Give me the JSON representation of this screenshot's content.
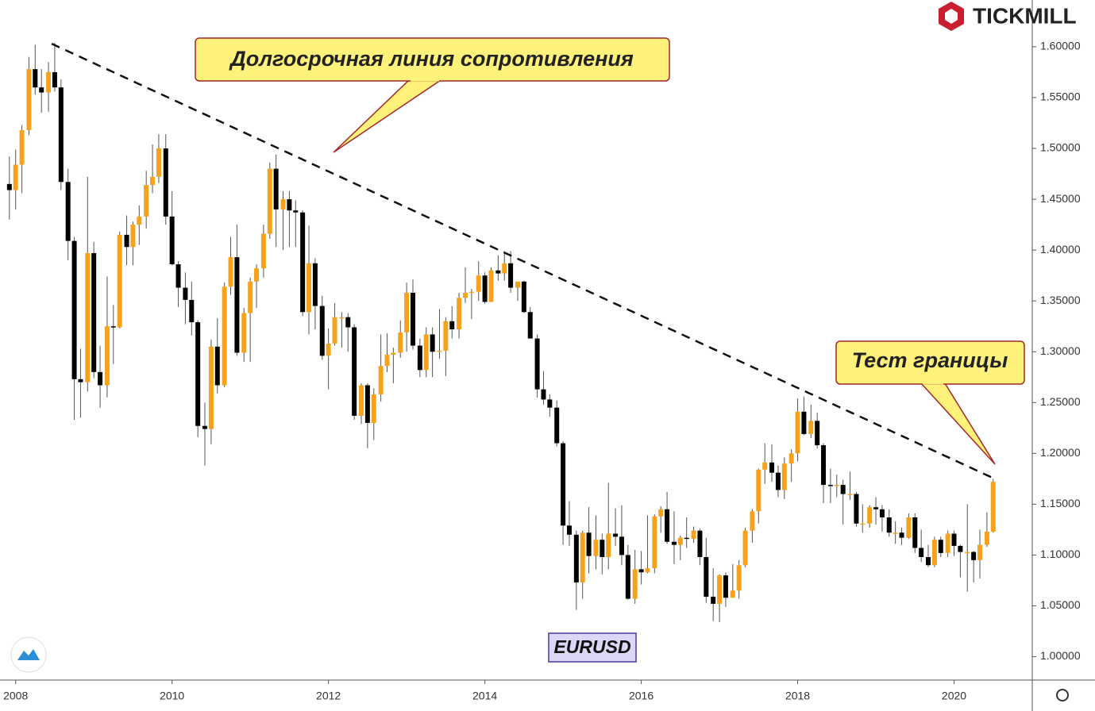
{
  "chart_data": {
    "type": "candlestick",
    "x": [
      2007.92,
      2008,
      2008.08,
      2008.17,
      2008.25,
      2008.33,
      2008.42,
      2008.5,
      2008.58,
      2008.67,
      2008.75,
      2008.83,
      2008.92,
      2009,
      2009.08,
      2009.17,
      2009.25,
      2009.33,
      2009.42,
      2009.5,
      2009.58,
      2009.67,
      2009.75,
      2009.83,
      2009.92,
      2010,
      2010.08,
      2010.17,
      2010.25,
      2010.33,
      2010.42,
      2010.5,
      2010.58,
      2010.67,
      2010.75,
      2010.83,
      2010.92,
      2011,
      2011.08,
      2011.17,
      2011.25,
      2011.33,
      2011.42,
      2011.5,
      2011.58,
      2011.67,
      2011.75,
      2011.83,
      2011.92,
      2012,
      2012.08,
      2012.17,
      2012.25,
      2012.33,
      2012.42,
      2012.5,
      2012.58,
      2012.67,
      2012.75,
      2012.83,
      2012.92,
      2013,
      2013.08,
      2013.17,
      2013.25,
      2013.33,
      2013.42,
      2013.5,
      2013.58,
      2013.67,
      2013.75,
      2013.83,
      2013.92,
      2014,
      2014.08,
      2014.17,
      2014.25,
      2014.33,
      2014.42,
      2014.5,
      2014.58,
      2014.67,
      2014.75,
      2014.83,
      2014.92,
      2015,
      2015.08,
      2015.17,
      2015.25,
      2015.33,
      2015.42,
      2015.5,
      2015.58,
      2015.67,
      2015.75,
      2015.83,
      2015.92,
      2016,
      2016.08,
      2016.17,
      2016.25,
      2016.33,
      2016.42,
      2016.5,
      2016.58,
      2016.67,
      2016.75,
      2016.83,
      2016.92,
      2017,
      2017.08,
      2017.17,
      2017.25,
      2017.33,
      2017.42,
      2017.5,
      2017.58,
      2017.67,
      2017.75,
      2017.83,
      2017.92,
      2018,
      2018.08,
      2018.17,
      2018.25,
      2018.33,
      2018.42,
      2018.5,
      2018.58,
      2018.67,
      2018.75,
      2018.83,
      2018.92,
      2019,
      2019.08,
      2019.17,
      2019.25,
      2019.33,
      2019.42,
      2019.5,
      2019.58,
      2019.67,
      2019.75,
      2019.83,
      2019.92,
      2020,
      2020.08,
      2020.17,
      2020.25,
      2020.33,
      2020.42,
      2020.5
    ],
    "open": [
      1.465,
      1.459,
      1.484,
      1.518,
      1.578,
      1.56,
      1.555,
      1.575,
      1.56,
      1.467,
      1.409,
      1.273,
      1.27,
      1.397,
      1.28,
      1.267,
      1.325,
      1.324,
      1.415,
      1.403,
      1.425,
      1.433,
      1.464,
      1.472,
      1.5,
      1.433,
      1.386,
      1.363,
      1.351,
      1.329,
      1.227,
      1.224,
      1.305,
      1.267,
      1.364,
      1.393,
      1.299,
      1.338,
      1.369,
      1.382,
      1.416,
      1.48,
      1.44,
      1.45,
      1.439,
      1.437,
      1.339,
      1.387,
      1.345,
      1.296,
      1.308,
      1.334,
      1.334,
      1.324,
      1.237,
      1.267,
      1.23,
      1.258,
      1.286,
      1.297,
      1.299,
      1.319,
      1.358,
      1.306,
      1.282,
      1.317,
      1.3,
      1.301,
      1.33,
      1.322,
      1.353,
      1.358,
      1.359,
      1.375,
      1.349,
      1.38,
      1.377,
      1.387,
      1.363,
      1.369,
      1.339,
      1.313,
      1.263,
      1.253,
      1.245,
      1.21,
      1.129,
      1.12,
      1.073,
      1.122,
      1.099,
      1.115,
      1.098,
      1.121,
      1.118,
      1.1,
      1.057,
      1.086,
      1.083,
      1.087,
      1.138,
      1.145,
      1.113,
      1.11,
      1.117,
      1.116,
      1.124,
      1.098,
      1.059,
      1.052,
      1.08,
      1.058,
      1.065,
      1.09,
      1.124,
      1.143,
      1.184,
      1.191,
      1.181,
      1.164,
      1.19,
      1.2,
      1.241,
      1.219,
      1.232,
      1.208,
      1.169,
      1.168,
      1.169,
      1.16,
      1.16,
      1.131,
      1.131,
      1.147,
      1.145,
      1.137,
      1.122,
      1.122,
      1.117,
      1.137,
      1.107,
      1.098,
      1.09,
      1.115,
      1.102,
      1.121,
      1.109,
      1.103,
      1.103,
      1.095,
      1.11,
      1.123
    ],
    "high": [
      1.492,
      1.499,
      1.523,
      1.59,
      1.602,
      1.578,
      1.585,
      1.604,
      1.568,
      1.48,
      1.413,
      1.303,
      1.472,
      1.408,
      1.306,
      1.374,
      1.346,
      1.418,
      1.434,
      1.428,
      1.444,
      1.478,
      1.504,
      1.514,
      1.514,
      1.458,
      1.389,
      1.378,
      1.369,
      1.331,
      1.25,
      1.312,
      1.333,
      1.368,
      1.413,
      1.425,
      1.343,
      1.373,
      1.386,
      1.425,
      1.486,
      1.494,
      1.458,
      1.458,
      1.449,
      1.439,
      1.424,
      1.392,
      1.355,
      1.323,
      1.348,
      1.339,
      1.338,
      1.327,
      1.269,
      1.269,
      1.264,
      1.317,
      1.318,
      1.304,
      1.331,
      1.368,
      1.371,
      1.313,
      1.324,
      1.324,
      1.342,
      1.334,
      1.345,
      1.358,
      1.383,
      1.362,
      1.389,
      1.378,
      1.383,
      1.395,
      1.399,
      1.399,
      1.369,
      1.37,
      1.344,
      1.317,
      1.281,
      1.258,
      1.252,
      1.212,
      1.153,
      1.124,
      1.124,
      1.147,
      1.139,
      1.121,
      1.171,
      1.146,
      1.149,
      1.11,
      1.105,
      1.104,
      1.139,
      1.14,
      1.148,
      1.162,
      1.143,
      1.119,
      1.137,
      1.128,
      1.126,
      1.117,
      1.087,
      1.081,
      1.083,
      1.091,
      1.095,
      1.127,
      1.145,
      1.185,
      1.21,
      1.209,
      1.188,
      1.196,
      1.204,
      1.254,
      1.256,
      1.248,
      1.24,
      1.21,
      1.185,
      1.179,
      1.174,
      1.182,
      1.162,
      1.15,
      1.149,
      1.157,
      1.149,
      1.145,
      1.133,
      1.127,
      1.141,
      1.141,
      1.125,
      1.11,
      1.118,
      1.118,
      1.124,
      1.124,
      1.11,
      1.15,
      1.104,
      1.125,
      1.142,
      1.175
    ],
    "low": [
      1.43,
      1.44,
      1.456,
      1.513,
      1.553,
      1.535,
      1.536,
      1.556,
      1.459,
      1.39,
      1.233,
      1.235,
      1.261,
      1.274,
      1.245,
      1.255,
      1.288,
      1.323,
      1.385,
      1.385,
      1.405,
      1.421,
      1.456,
      1.466,
      1.425,
      1.385,
      1.344,
      1.327,
      1.316,
      1.216,
      1.188,
      1.209,
      1.259,
      1.265,
      1.356,
      1.296,
      1.29,
      1.29,
      1.343,
      1.373,
      1.411,
      1.403,
      1.4,
      1.403,
      1.403,
      1.335,
      1.317,
      1.322,
      1.292,
      1.263,
      1.306,
      1.304,
      1.3,
      1.233,
      1.229,
      1.205,
      1.213,
      1.251,
      1.28,
      1.269,
      1.294,
      1.3,
      1.302,
      1.275,
      1.275,
      1.275,
      1.293,
      1.276,
      1.313,
      1.313,
      1.348,
      1.332,
      1.35,
      1.347,
      1.349,
      1.37,
      1.37,
      1.358,
      1.35,
      1.338,
      1.313,
      1.255,
      1.248,
      1.236,
      1.207,
      1.11,
      1.109,
      1.046,
      1.057,
      1.082,
      1.086,
      1.081,
      1.086,
      1.109,
      1.09,
      1.056,
      1.052,
      1.071,
      1.082,
      1.082,
      1.122,
      1.111,
      1.091,
      1.095,
      1.107,
      1.112,
      1.09,
      1.053,
      1.035,
      1.034,
      1.049,
      1.058,
      1.057,
      1.088,
      1.112,
      1.131,
      1.17,
      1.172,
      1.157,
      1.155,
      1.172,
      1.192,
      1.218,
      1.215,
      1.205,
      1.151,
      1.151,
      1.157,
      1.13,
      1.154,
      1.128,
      1.122,
      1.127,
      1.13,
      1.123,
      1.118,
      1.111,
      1.11,
      1.116,
      1.102,
      1.093,
      1.088,
      1.088,
      1.098,
      1.098,
      1.099,
      1.078,
      1.064,
      1.073,
      1.077,
      1.108,
      1.122
    ],
    "close": [
      1.459,
      1.484,
      1.518,
      1.578,
      1.56,
      1.555,
      1.575,
      1.56,
      1.467,
      1.409,
      1.273,
      1.27,
      1.397,
      1.28,
      1.267,
      1.325,
      1.324,
      1.415,
      1.403,
      1.425,
      1.433,
      1.464,
      1.472,
      1.5,
      1.433,
      1.386,
      1.363,
      1.351,
      1.329,
      1.227,
      1.224,
      1.305,
      1.267,
      1.364,
      1.393,
      1.299,
      1.338,
      1.369,
      1.382,
      1.416,
      1.48,
      1.44,
      1.45,
      1.439,
      1.437,
      1.339,
      1.387,
      1.345,
      1.296,
      1.308,
      1.334,
      1.334,
      1.324,
      1.237,
      1.267,
      1.23,
      1.258,
      1.286,
      1.297,
      1.299,
      1.319,
      1.358,
      1.306,
      1.282,
      1.317,
      1.3,
      1.301,
      1.33,
      1.322,
      1.353,
      1.358,
      1.359,
      1.375,
      1.349,
      1.38,
      1.377,
      1.387,
      1.363,
      1.369,
      1.339,
      1.313,
      1.263,
      1.253,
      1.245,
      1.21,
      1.129,
      1.12,
      1.073,
      1.122,
      1.099,
      1.115,
      1.098,
      1.121,
      1.118,
      1.1,
      1.057,
      1.086,
      1.083,
      1.087,
      1.138,
      1.145,
      1.113,
      1.11,
      1.117,
      1.116,
      1.124,
      1.098,
      1.059,
      1.052,
      1.08,
      1.058,
      1.065,
      1.09,
      1.124,
      1.143,
      1.184,
      1.191,
      1.181,
      1.164,
      1.19,
      1.2,
      1.241,
      1.219,
      1.232,
      1.208,
      1.169,
      1.168,
      1.169,
      1.16,
      1.16,
      1.131,
      1.131,
      1.147,
      1.145,
      1.137,
      1.122,
      1.122,
      1.117,
      1.137,
      1.107,
      1.098,
      1.09,
      1.115,
      1.102,
      1.121,
      1.109,
      1.103,
      1.103,
      1.095,
      1.11,
      1.123,
      1.172
    ],
    "up_color": "#f7a21b",
    "down_color": "#000000",
    "xlim": [
      2007.8,
      2021.0
    ],
    "xticks": [
      2008,
      2010,
      2012,
      2014,
      2016,
      2018,
      2020
    ],
    "ylim": [
      0.977,
      1.646
    ],
    "yticks": [
      {
        "value": 1.0,
        "label": "1.00000"
      },
      {
        "value": 1.05,
        "label": "1.05000"
      },
      {
        "value": 1.1,
        "label": "1.10000"
      },
      {
        "value": 1.15,
        "label": "1.15000"
      },
      {
        "value": 1.2,
        "label": "1.20000"
      },
      {
        "value": 1.25,
        "label": "1.25000"
      },
      {
        "value": 1.3,
        "label": "1.30000"
      },
      {
        "value": 1.35,
        "label": "1.35000"
      },
      {
        "value": 1.4,
        "label": "1.40000"
      },
      {
        "value": 1.45,
        "label": "1.45000"
      },
      {
        "value": 1.5,
        "label": "1.50000"
      },
      {
        "value": 1.55,
        "label": "1.55000"
      },
      {
        "value": 1.6,
        "label": "1.60000"
      }
    ],
    "trendline": {
      "x": [
        2008.46,
        2020.52
      ],
      "y": [
        1.603,
        1.175
      ]
    },
    "annotations": [
      "Долгосрочная линия сопротивления",
      "Тест границы"
    ],
    "symbol": "EURUSD"
  },
  "logo": "TICKMILL"
}
